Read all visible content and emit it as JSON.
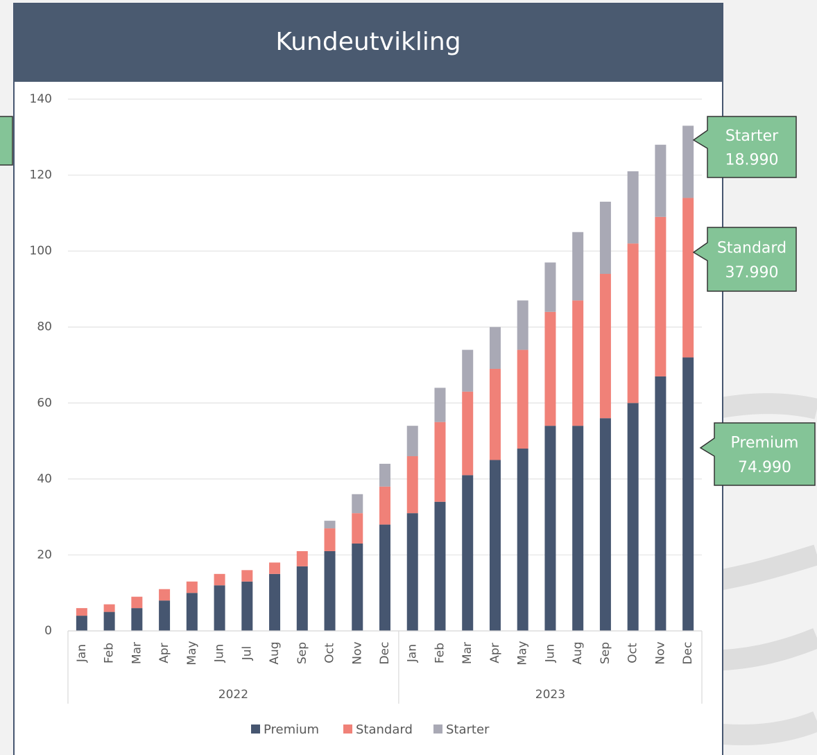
{
  "chart_data": {
    "type": "stacked_bar",
    "title": "Kundeutvikling",
    "category_groups": [
      {
        "name": "2022",
        "categories": [
          "Jan",
          "Feb",
          "Mar",
          "Apr",
          "May",
          "Jun",
          "Jul",
          "Aug",
          "Sep",
          "Oct",
          "Nov",
          "Dec"
        ]
      },
      {
        "name": "2023",
        "categories": [
          "Jan",
          "Feb",
          "Mar",
          "Apr",
          "May",
          "Jun",
          "Aug",
          "Sep",
          "Oct",
          "Nov",
          "Dec"
        ]
      }
    ],
    "series": [
      {
        "name": "Premium",
        "color": "#465670",
        "values": [
          4,
          5,
          6,
          8,
          10,
          12,
          13,
          15,
          17,
          21,
          23,
          28,
          31,
          34,
          41,
          45,
          48,
          54,
          54,
          56,
          60,
          67,
          72
        ]
      },
      {
        "name": "Standard",
        "color": "#f08178",
        "values": [
          2,
          2,
          3,
          3,
          3,
          3,
          3,
          3,
          4,
          6,
          8,
          10,
          15,
          21,
          22,
          24,
          26,
          30,
          33,
          38,
          42,
          42,
          42
        ]
      },
      {
        "name": "Starter",
        "color": "#a9a9b5",
        "values": [
          0,
          0,
          0,
          0,
          0,
          0,
          0,
          0,
          0,
          2,
          5,
          6,
          8,
          9,
          11,
          11,
          13,
          13,
          18,
          19,
          19,
          19,
          19
        ]
      }
    ],
    "ylim": [
      0,
      140
    ],
    "yticks": [
      0,
      20,
      40,
      60,
      80,
      100,
      120,
      140
    ],
    "grid": true,
    "legend": "bottom",
    "callouts": [
      {
        "label": "Starter",
        "price": "18.990"
      },
      {
        "label": "Standard",
        "price": "37.990"
      },
      {
        "label": "Premium",
        "price": "74.990"
      }
    ]
  }
}
